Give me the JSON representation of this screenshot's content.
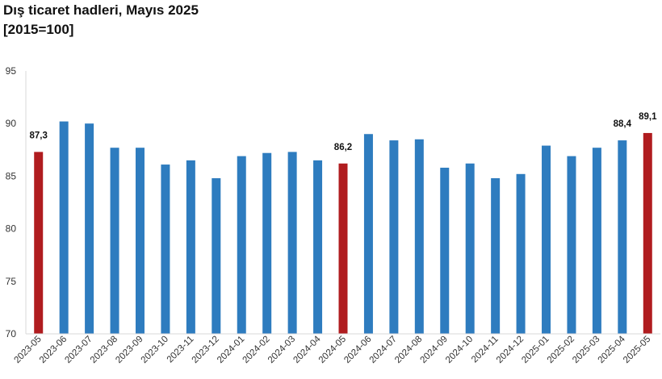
{
  "title": "Dış ticaret hadleri, Mayıs 2025",
  "subtitle": "[2015=100]",
  "colors": {
    "default": "#2e7cbf",
    "highlight": "#b01c1f"
  },
  "chart_data": {
    "type": "bar",
    "title": "Dış ticaret hadleri, Mayıs 2025",
    "subtitle": "[2015=100]",
    "xlabel": "",
    "ylabel": "",
    "ylim": [
      70,
      95
    ],
    "yticks": [
      70,
      75,
      80,
      85,
      90,
      95
    ],
    "grid": false,
    "categories": [
      "2023-05",
      "2023-06",
      "2023-07",
      "2023-08",
      "2023-09",
      "2023-10",
      "2023-11",
      "2023-12",
      "2024-01",
      "2024-02",
      "2024-03",
      "2024-04",
      "2024-05",
      "2024-06",
      "2024-07",
      "2024-08",
      "2024-09",
      "2024-10",
      "2024-11",
      "2024-12",
      "2025-01",
      "2025-02",
      "2025-03",
      "2025-04",
      "2025-05"
    ],
    "values": [
      87.3,
      90.2,
      90.0,
      87.7,
      87.7,
      86.1,
      86.5,
      84.8,
      86.9,
      87.2,
      87.3,
      86.5,
      86.2,
      89.0,
      88.4,
      88.5,
      85.8,
      86.2,
      84.8,
      85.2,
      87.9,
      86.9,
      87.7,
      88.4,
      89.1
    ],
    "highlighted": [
      "2023-05",
      "2024-05",
      "2025-05"
    ],
    "data_labels": [
      {
        "category": "2023-05",
        "text": "87,3"
      },
      {
        "category": "2024-05",
        "text": "86,2"
      },
      {
        "category": "2025-04",
        "text": "88,4"
      },
      {
        "category": "2025-05",
        "text": "89,1"
      }
    ]
  }
}
